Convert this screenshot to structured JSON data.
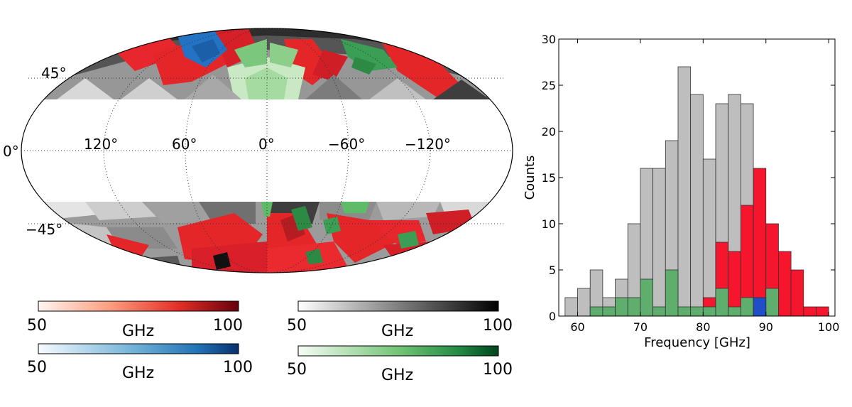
{
  "sky_map": {
    "lat_labels": [
      "45°",
      "0°",
      "−45°"
    ],
    "lon_labels": [
      "120°",
      "60°",
      "0°",
      "−60°",
      "−120°"
    ]
  },
  "colorbars": [
    {
      "name": "red",
      "min_label": "50",
      "max_label": "100",
      "unit": "GHz",
      "color_low": "#fff0ea",
      "color_high": "#67000d"
    },
    {
      "name": "gray",
      "min_label": "50",
      "max_label": "100",
      "unit": "GHz",
      "color_low": "#ffffff",
      "color_high": "#000000"
    },
    {
      "name": "blue",
      "min_label": "50",
      "max_label": "100",
      "unit": "GHz",
      "color_low": "#f3f8fd",
      "color_high": "#08306b"
    },
    {
      "name": "green",
      "min_label": "50",
      "max_label": "100",
      "unit": "GHz",
      "color_low": "#f4fbf1",
      "color_high": "#00441b"
    }
  ],
  "chart_data": {
    "type": "bar",
    "title": "",
    "xlabel": "Frequency [GHz]",
    "ylabel": "Counts",
    "xlim": [
      57,
      101
    ],
    "ylim": [
      0,
      30
    ],
    "xticks": [
      60,
      70,
      80,
      90,
      100
    ],
    "yticks": [
      0,
      5,
      10,
      15,
      20,
      25,
      30
    ],
    "bin_width": 2,
    "series": [
      {
        "name": "gray",
        "color": "#bebebe",
        "stacked": false,
        "bins": [
          {
            "x": 58,
            "value": 2
          },
          {
            "x": 60,
            "value": 3
          },
          {
            "x": 62,
            "value": 5
          },
          {
            "x": 64,
            "value": 2
          },
          {
            "x": 66,
            "value": 4
          },
          {
            "x": 68,
            "value": 10
          },
          {
            "x": 70,
            "value": 16
          },
          {
            "x": 72,
            "value": 16
          },
          {
            "x": 74,
            "value": 19
          },
          {
            "x": 76,
            "value": 27
          },
          {
            "x": 78,
            "value": 24
          },
          {
            "x": 80,
            "value": 17
          },
          {
            "x": 82,
            "value": 23
          },
          {
            "x": 84,
            "value": 24
          },
          {
            "x": 86,
            "value": 23
          }
        ]
      },
      {
        "name": "red",
        "color": "#f5152d",
        "stacked": false,
        "bins": [
          {
            "x": 80,
            "value": 2
          },
          {
            "x": 82,
            "value": 8
          },
          {
            "x": 84,
            "value": 7
          },
          {
            "x": 86,
            "value": 12
          },
          {
            "x": 88,
            "value": 16
          },
          {
            "x": 90,
            "value": 10
          },
          {
            "x": 92,
            "value": 7
          },
          {
            "x": 94,
            "value": 5
          },
          {
            "x": 96,
            "value": 1
          },
          {
            "x": 98,
            "value": 1
          }
        ]
      },
      {
        "name": "green",
        "color": "#5fae6e",
        "stacked": false,
        "bins": [
          {
            "x": 62,
            "value": 1
          },
          {
            "x": 64,
            "value": 1
          },
          {
            "x": 66,
            "value": 2
          },
          {
            "x": 68,
            "value": 2
          },
          {
            "x": 70,
            "value": 4
          },
          {
            "x": 72,
            "value": 1
          },
          {
            "x": 74,
            "value": 5
          },
          {
            "x": 76,
            "value": 1
          },
          {
            "x": 78,
            "value": 1
          },
          {
            "x": 80,
            "value": 1
          },
          {
            "x": 82,
            "value": 3
          },
          {
            "x": 84,
            "value": 1
          },
          {
            "x": 86,
            "value": 2
          },
          {
            "x": 88,
            "value": 1
          },
          {
            "x": 90,
            "value": 3
          }
        ]
      },
      {
        "name": "blue",
        "color": "#1f4ec6",
        "stacked": false,
        "bins": [
          {
            "x": 88,
            "value": 2
          }
        ]
      }
    ]
  }
}
